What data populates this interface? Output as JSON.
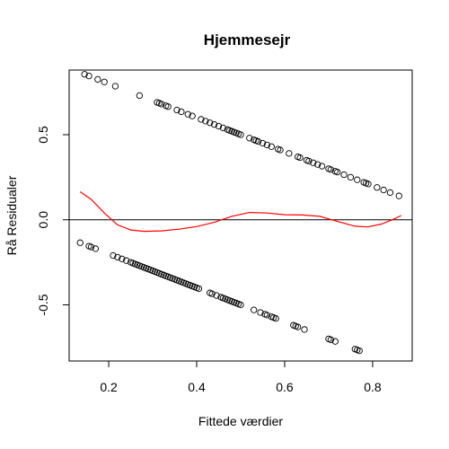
{
  "chart_data": {
    "type": "scatter",
    "title": "Hjemmesejr",
    "xlabel": "Fittede værdier",
    "ylabel": "Rå Residualer",
    "xlim": [
      0.11,
      0.89
    ],
    "ylim": [
      -0.83,
      0.88
    ],
    "xticks": [
      0.2,
      0.4,
      0.6,
      0.8
    ],
    "xtick_labels": [
      "0.2",
      "0.4",
      "0.6",
      "0.8"
    ],
    "yticks": [
      -0.5,
      0.0,
      0.5
    ],
    "ytick_labels": [
      "-0.5",
      "0.0",
      "0.5"
    ],
    "grid": false,
    "hline": 0,
    "point_color": "#000000",
    "line_color": "#ff0000",
    "points_positive_x": [
      0.145,
      0.155,
      0.175,
      0.19,
      0.215,
      0.27,
      0.31,
      0.315,
      0.32,
      0.33,
      0.335,
      0.355,
      0.365,
      0.38,
      0.39,
      0.41,
      0.42,
      0.43,
      0.44,
      0.45,
      0.46,
      0.47,
      0.475,
      0.48,
      0.485,
      0.49,
      0.495,
      0.5,
      0.52,
      0.53,
      0.535,
      0.54,
      0.55,
      0.56,
      0.57,
      0.585,
      0.59,
      0.61,
      0.63,
      0.635,
      0.65,
      0.655,
      0.665,
      0.675,
      0.685,
      0.7,
      0.705,
      0.715,
      0.72,
      0.735,
      0.75,
      0.765,
      0.78,
      0.785,
      0.79,
      0.81,
      0.825,
      0.84,
      0.86
    ],
    "points_negative_x": [
      0.135,
      0.155,
      0.16,
      0.17,
      0.21,
      0.22,
      0.23,
      0.24,
      0.25,
      0.255,
      0.26,
      0.265,
      0.27,
      0.275,
      0.28,
      0.285,
      0.29,
      0.295,
      0.3,
      0.305,
      0.31,
      0.315,
      0.32,
      0.325,
      0.33,
      0.335,
      0.34,
      0.345,
      0.35,
      0.355,
      0.36,
      0.365,
      0.37,
      0.375,
      0.38,
      0.385,
      0.39,
      0.395,
      0.4,
      0.405,
      0.43,
      0.435,
      0.445,
      0.455,
      0.46,
      0.465,
      0.47,
      0.475,
      0.48,
      0.485,
      0.49,
      0.495,
      0.5,
      0.53,
      0.545,
      0.555,
      0.56,
      0.57,
      0.575,
      0.58,
      0.62,
      0.625,
      0.63,
      0.645,
      0.7,
      0.705,
      0.715,
      0.76,
      0.765,
      0.77
    ],
    "smooth_line": [
      [
        0.135,
        0.165
      ],
      [
        0.16,
        0.12
      ],
      [
        0.19,
        0.04
      ],
      [
        0.22,
        -0.03
      ],
      [
        0.25,
        -0.06
      ],
      [
        0.28,
        -0.068
      ],
      [
        0.32,
        -0.065
      ],
      [
        0.36,
        -0.055
      ],
      [
        0.4,
        -0.04
      ],
      [
        0.44,
        -0.015
      ],
      [
        0.48,
        0.02
      ],
      [
        0.52,
        0.043
      ],
      [
        0.56,
        0.04
      ],
      [
        0.6,
        0.03
      ],
      [
        0.64,
        0.028
      ],
      [
        0.68,
        0.02
      ],
      [
        0.72,
        -0.01
      ],
      [
        0.76,
        -0.038
      ],
      [
        0.79,
        -0.042
      ],
      [
        0.82,
        -0.025
      ],
      [
        0.845,
        0.0
      ],
      [
        0.865,
        0.025
      ]
    ]
  }
}
